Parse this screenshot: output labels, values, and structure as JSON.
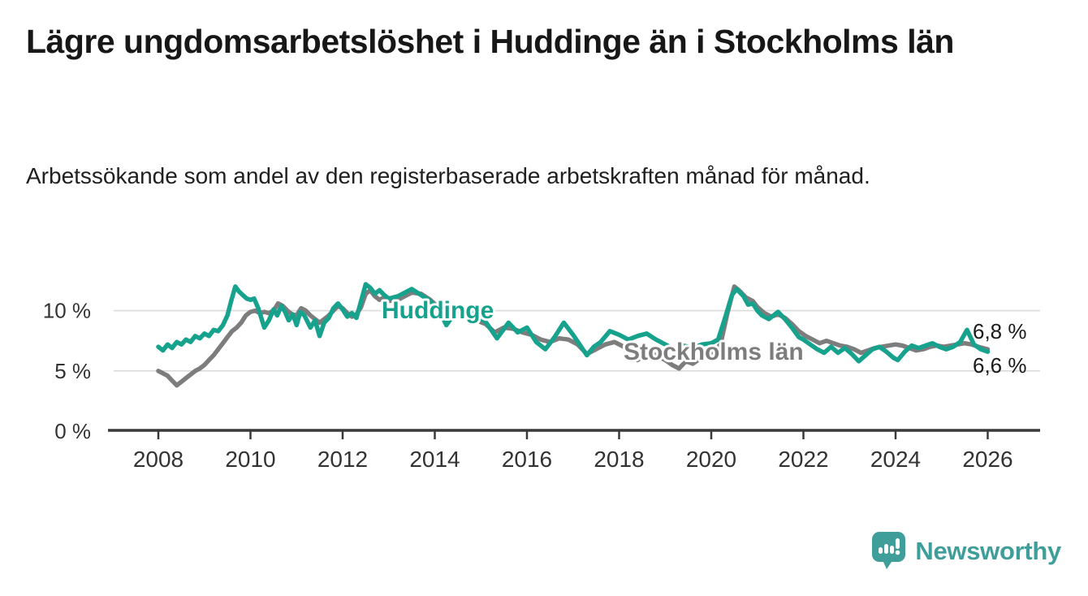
{
  "header": {
    "title": "Lägre ungdomsarbetslöshet i Huddinge än i Stockholms län",
    "subtitle": "Arbetssökande som andel av den registerbaserade arbetskraften månad för månad."
  },
  "chart_data": {
    "type": "line",
    "title": "Lägre ungdomsarbetslöshet i Huddinge än i Stockholms län",
    "subtitle": "Arbetssökande som andel av den registerbaserade arbetskraften månad för månad.",
    "xlabel": "",
    "ylabel": "",
    "x_unit": "year",
    "y_unit": "%",
    "xlim": [
      2007.3,
      2027.1
    ],
    "ylim": [
      0,
      13
    ],
    "grid": "horizontal",
    "legend_position": "inline-labels",
    "xticks": [
      2008,
      2010,
      2012,
      2014,
      2016,
      2018,
      2020,
      2022,
      2024,
      2026
    ],
    "yticks": [
      {
        "value": 0,
        "label": "0 %"
      },
      {
        "value": 5,
        "label": "5 %"
      },
      {
        "value": 10,
        "label": "10 %"
      }
    ],
    "series": [
      {
        "name": "Huddinge",
        "color": "#17a28e",
        "end_label": "6,6 %",
        "x": [
          2008.0,
          2008.1,
          2008.2,
          2008.3,
          2008.4,
          2008.5,
          2008.6,
          2008.7,
          2008.8,
          2008.9,
          2009.0,
          2009.1,
          2009.2,
          2009.3,
          2009.4,
          2009.5,
          2009.58,
          2009.67,
          2009.75,
          2009.83,
          2009.92,
          2010.0,
          2010.08,
          2010.17,
          2010.3,
          2010.4,
          2010.5,
          2010.58,
          2010.67,
          2010.75,
          2010.83,
          2010.92,
          2011.0,
          2011.08,
          2011.17,
          2011.3,
          2011.4,
          2011.5,
          2011.6,
          2011.7,
          2011.8,
          2011.9,
          2012.0,
          2012.1,
          2012.2,
          2012.3,
          2012.4,
          2012.5,
          2012.6,
          2012.7,
          2012.8,
          2012.9,
          2013.0,
          2013.2,
          2013.5,
          2013.7,
          2013.9,
          2014.1,
          2014.25,
          2014.4,
          2014.6,
          2014.8,
          2015.0,
          2015.1,
          2015.35,
          2015.6,
          2015.8,
          2016.0,
          2016.2,
          2016.4,
          2016.6,
          2016.8,
          2017.0,
          2017.3,
          2017.45,
          2017.6,
          2017.8,
          2018.0,
          2018.2,
          2018.4,
          2018.6,
          2018.8,
          2019.0,
          2019.2,
          2019.4,
          2019.6,
          2019.8,
          2020.0,
          2020.15,
          2020.3,
          2020.45,
          2020.55,
          2020.7,
          2020.8,
          2020.9,
          2021.0,
          2021.1,
          2021.25,
          2021.45,
          2021.6,
          2021.75,
          2021.9,
          2022.0,
          2022.15,
          2022.3,
          2022.45,
          2022.6,
          2022.75,
          2022.9,
          2023.05,
          2023.2,
          2023.35,
          2023.5,
          2023.65,
          2023.8,
          2023.95,
          2024.05,
          2024.2,
          2024.35,
          2024.5,
          2024.65,
          2024.8,
          2024.95,
          2025.1,
          2025.25,
          2025.4,
          2025.55,
          2025.7,
          2025.85,
          2026.0
        ],
        "values": [
          7.0,
          6.7,
          7.2,
          6.9,
          7.4,
          7.2,
          7.6,
          7.4,
          7.9,
          7.7,
          8.1,
          7.9,
          8.4,
          8.3,
          8.8,
          9.6,
          10.8,
          12.0,
          11.6,
          11.3,
          11.0,
          10.9,
          11.0,
          10.2,
          8.6,
          9.2,
          10.1,
          9.6,
          10.4,
          9.9,
          9.2,
          9.7,
          8.8,
          9.9,
          9.6,
          8.6,
          9.2,
          7.9,
          9.0,
          9.4,
          10.2,
          10.6,
          10.1,
          9.5,
          9.8,
          9.4,
          10.8,
          12.2,
          11.9,
          11.4,
          11.7,
          11.3,
          11.0,
          11.2,
          11.8,
          11.3,
          10.8,
          10.0,
          8.8,
          9.6,
          10.3,
          9.9,
          9.3,
          9.1,
          7.7,
          9.0,
          8.2,
          8.6,
          7.4,
          6.8,
          7.8,
          9.0,
          8.0,
          6.3,
          7.0,
          7.4,
          8.3,
          8.0,
          7.6,
          7.9,
          8.1,
          7.6,
          7.2,
          6.8,
          7.1,
          6.9,
          7.2,
          7.3,
          7.6,
          9.4,
          11.3,
          11.8,
          11.2,
          10.5,
          10.6,
          10.0,
          9.6,
          9.3,
          9.9,
          9.3,
          8.6,
          7.8,
          7.6,
          7.2,
          6.8,
          6.5,
          7.0,
          6.5,
          6.9,
          6.4,
          5.8,
          6.3,
          6.8,
          7.0,
          6.6,
          6.1,
          5.9,
          6.6,
          7.1,
          6.9,
          7.1,
          7.3,
          7.0,
          6.8,
          7.0,
          7.4,
          8.4,
          7.2,
          6.8,
          6.6
        ]
      },
      {
        "name": "Stockholms län",
        "color": "#7d7d7d",
        "end_label": "6,8 %",
        "x": [
          2008.0,
          2008.1,
          2008.2,
          2008.3,
          2008.4,
          2008.5,
          2008.6,
          2008.7,
          2008.8,
          2008.9,
          2009.0,
          2009.1,
          2009.2,
          2009.3,
          2009.4,
          2009.5,
          2009.6,
          2009.7,
          2009.8,
          2009.9,
          2010.0,
          2010.1,
          2010.2,
          2010.3,
          2010.4,
          2010.5,
          2010.6,
          2010.7,
          2010.8,
          2010.9,
          2011.0,
          2011.1,
          2011.2,
          2011.3,
          2011.4,
          2011.5,
          2011.6,
          2011.7,
          2011.8,
          2011.9,
          2012.0,
          2012.1,
          2012.2,
          2012.3,
          2012.4,
          2012.5,
          2012.6,
          2012.7,
          2012.8,
          2012.9,
          2013.0,
          2013.2,
          2013.5,
          2013.7,
          2013.9,
          2014.1,
          2014.3,
          2014.5,
          2014.7,
          2014.9,
          2015.1,
          2015.3,
          2015.5,
          2015.7,
          2015.9,
          2016.1,
          2016.3,
          2016.5,
          2016.7,
          2016.9,
          2017.1,
          2017.3,
          2017.5,
          2017.7,
          2017.9,
          2018.1,
          2018.25,
          2018.4,
          2018.55,
          2018.7,
          2018.85,
          2019.0,
          2019.15,
          2019.3,
          2019.45,
          2019.6,
          2019.75,
          2019.9,
          2020.05,
          2020.2,
          2020.35,
          2020.5,
          2020.6,
          2020.75,
          2020.9,
          2021.0,
          2021.15,
          2021.3,
          2021.45,
          2021.6,
          2021.75,
          2021.9,
          2022.05,
          2022.2,
          2022.35,
          2022.5,
          2022.65,
          2022.8,
          2022.95,
          2023.1,
          2023.25,
          2023.4,
          2023.55,
          2023.7,
          2023.85,
          2024.0,
          2024.15,
          2024.3,
          2024.45,
          2024.6,
          2024.75,
          2024.9,
          2025.05,
          2025.2,
          2025.35,
          2025.5,
          2025.65,
          2025.8,
          2026.0
        ],
        "values": [
          5.0,
          4.8,
          4.6,
          4.2,
          3.8,
          4.1,
          4.4,
          4.7,
          5.0,
          5.2,
          5.5,
          5.9,
          6.3,
          6.8,
          7.3,
          7.8,
          8.3,
          8.6,
          9.0,
          9.6,
          9.9,
          10.0,
          9.8,
          9.9,
          9.8,
          10.0,
          10.6,
          10.4,
          10.0,
          9.7,
          9.6,
          10.2,
          10.0,
          9.6,
          9.3,
          9.0,
          9.3,
          9.6,
          10.0,
          10.4,
          10.2,
          9.8,
          9.5,
          9.7,
          10.3,
          11.4,
          11.7,
          11.2,
          10.9,
          11.1,
          10.8,
          10.9,
          11.5,
          11.4,
          10.9,
          10.2,
          9.6,
          9.9,
          9.7,
          9.2,
          8.9,
          8.2,
          8.6,
          8.5,
          8.2,
          8.0,
          7.6,
          7.4,
          7.7,
          7.6,
          7.2,
          6.4,
          6.8,
          7.2,
          7.4,
          7.0,
          6.4,
          5.9,
          6.3,
          6.5,
          6.2,
          5.9,
          5.5,
          5.2,
          5.8,
          5.6,
          6.0,
          6.4,
          6.6,
          7.2,
          9.8,
          12.0,
          11.7,
          11.1,
          10.8,
          10.3,
          9.8,
          9.5,
          9.7,
          9.4,
          8.9,
          8.3,
          7.9,
          7.6,
          7.3,
          7.5,
          7.3,
          7.1,
          7.0,
          6.8,
          6.5,
          6.7,
          6.9,
          7.0,
          7.1,
          7.2,
          7.1,
          6.9,
          6.7,
          6.8,
          7.0,
          7.1,
          7.0,
          7.1,
          7.2,
          7.3,
          7.2,
          7.0,
          6.8
        ]
      }
    ]
  },
  "footer": {
    "brand": "Newsworthy",
    "brand_color": "#3f9e9a",
    "logo_icon": "bar-chart-speech-bubble"
  }
}
